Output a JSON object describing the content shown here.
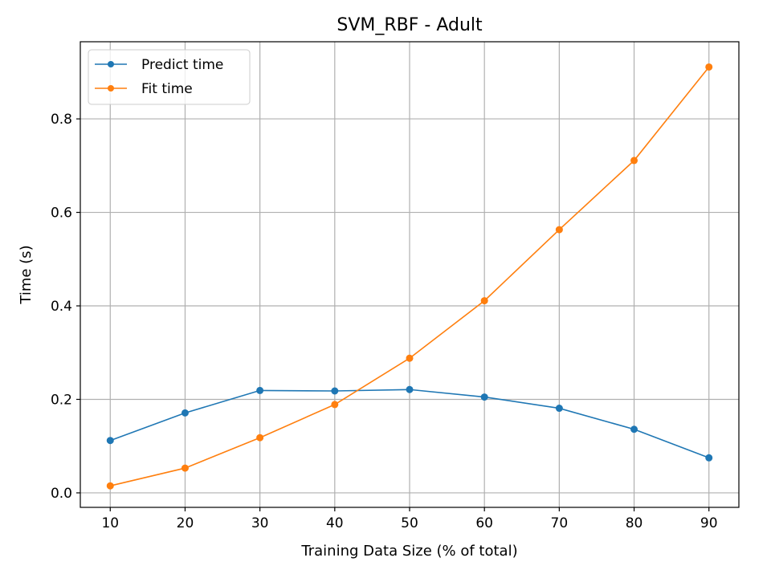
{
  "chart_data": {
    "type": "line",
    "title": "SVM_RBF - Adult",
    "xlabel": "Training Data Size (% of total)",
    "ylabel": "Time (s)",
    "x": [
      10,
      20,
      30,
      40,
      50,
      60,
      70,
      80,
      90
    ],
    "xlim": [
      6,
      94
    ],
    "ylim": [
      -0.031,
      0.965
    ],
    "xticks": [
      10,
      20,
      30,
      40,
      50,
      60,
      70,
      80,
      90
    ],
    "yticks": [
      0.0,
      0.2,
      0.4,
      0.6,
      0.8
    ],
    "ytick_labels": [
      "0.0",
      "0.2",
      "0.4",
      "0.6",
      "0.8"
    ],
    "grid": true,
    "legend": "top-left",
    "series": [
      {
        "name": "Predict time",
        "color": "#1f77b4",
        "values": [
          0.112,
          0.171,
          0.219,
          0.218,
          0.221,
          0.205,
          0.181,
          0.136,
          0.075
        ]
      },
      {
        "name": "Fit time",
        "color": "#ff7f0e",
        "values": [
          0.015,
          0.053,
          0.118,
          0.189,
          0.288,
          0.411,
          0.563,
          0.711,
          0.911
        ]
      }
    ]
  }
}
